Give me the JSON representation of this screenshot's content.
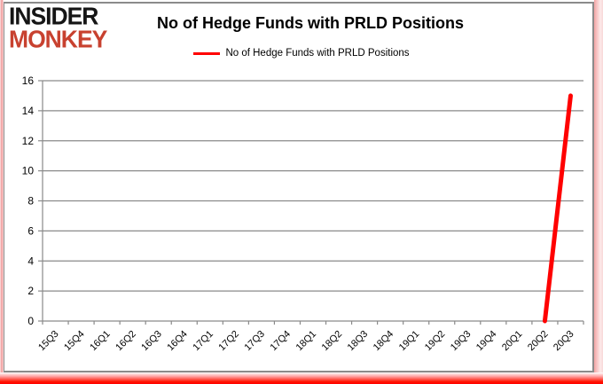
{
  "logo": {
    "line1": "INSIDER",
    "line2": "MONKEY"
  },
  "header": {
    "title": "No of Hedge Funds with PRLD Positions"
  },
  "legend": {
    "label": "No of Hedge Funds with PRLD Positions",
    "swatch_color": "#ff0000"
  },
  "chart_data": {
    "type": "line",
    "title": "No of Hedge Funds with PRLD Positions",
    "xlabel": "",
    "ylabel": "",
    "ylim": [
      0,
      16
    ],
    "ytick_step": 2,
    "grid": true,
    "legend_position": "top",
    "legend_entries": [
      "No of Hedge Funds with PRLD Positions"
    ],
    "categories": [
      "15Q3",
      "15Q4",
      "16Q1",
      "16Q2",
      "16Q3",
      "16Q4",
      "17Q1",
      "17Q2",
      "17Q3",
      "17Q4",
      "18Q1",
      "18Q2",
      "18Q3",
      "18Q4",
      "19Q1",
      "19Q2",
      "19Q3",
      "19Q4",
      "20Q1",
      "20Q2",
      "20Q3"
    ],
    "series": [
      {
        "name": "No of Hedge Funds with PRLD Positions",
        "color": "#ff0000",
        "values": [
          null,
          null,
          null,
          null,
          null,
          null,
          null,
          null,
          null,
          null,
          null,
          null,
          null,
          null,
          null,
          null,
          null,
          null,
          null,
          0,
          15
        ]
      }
    ],
    "colors": {
      "grid": "#8a8a8a",
      "axis": "#8a8a8a",
      "text": "#000000"
    }
  }
}
